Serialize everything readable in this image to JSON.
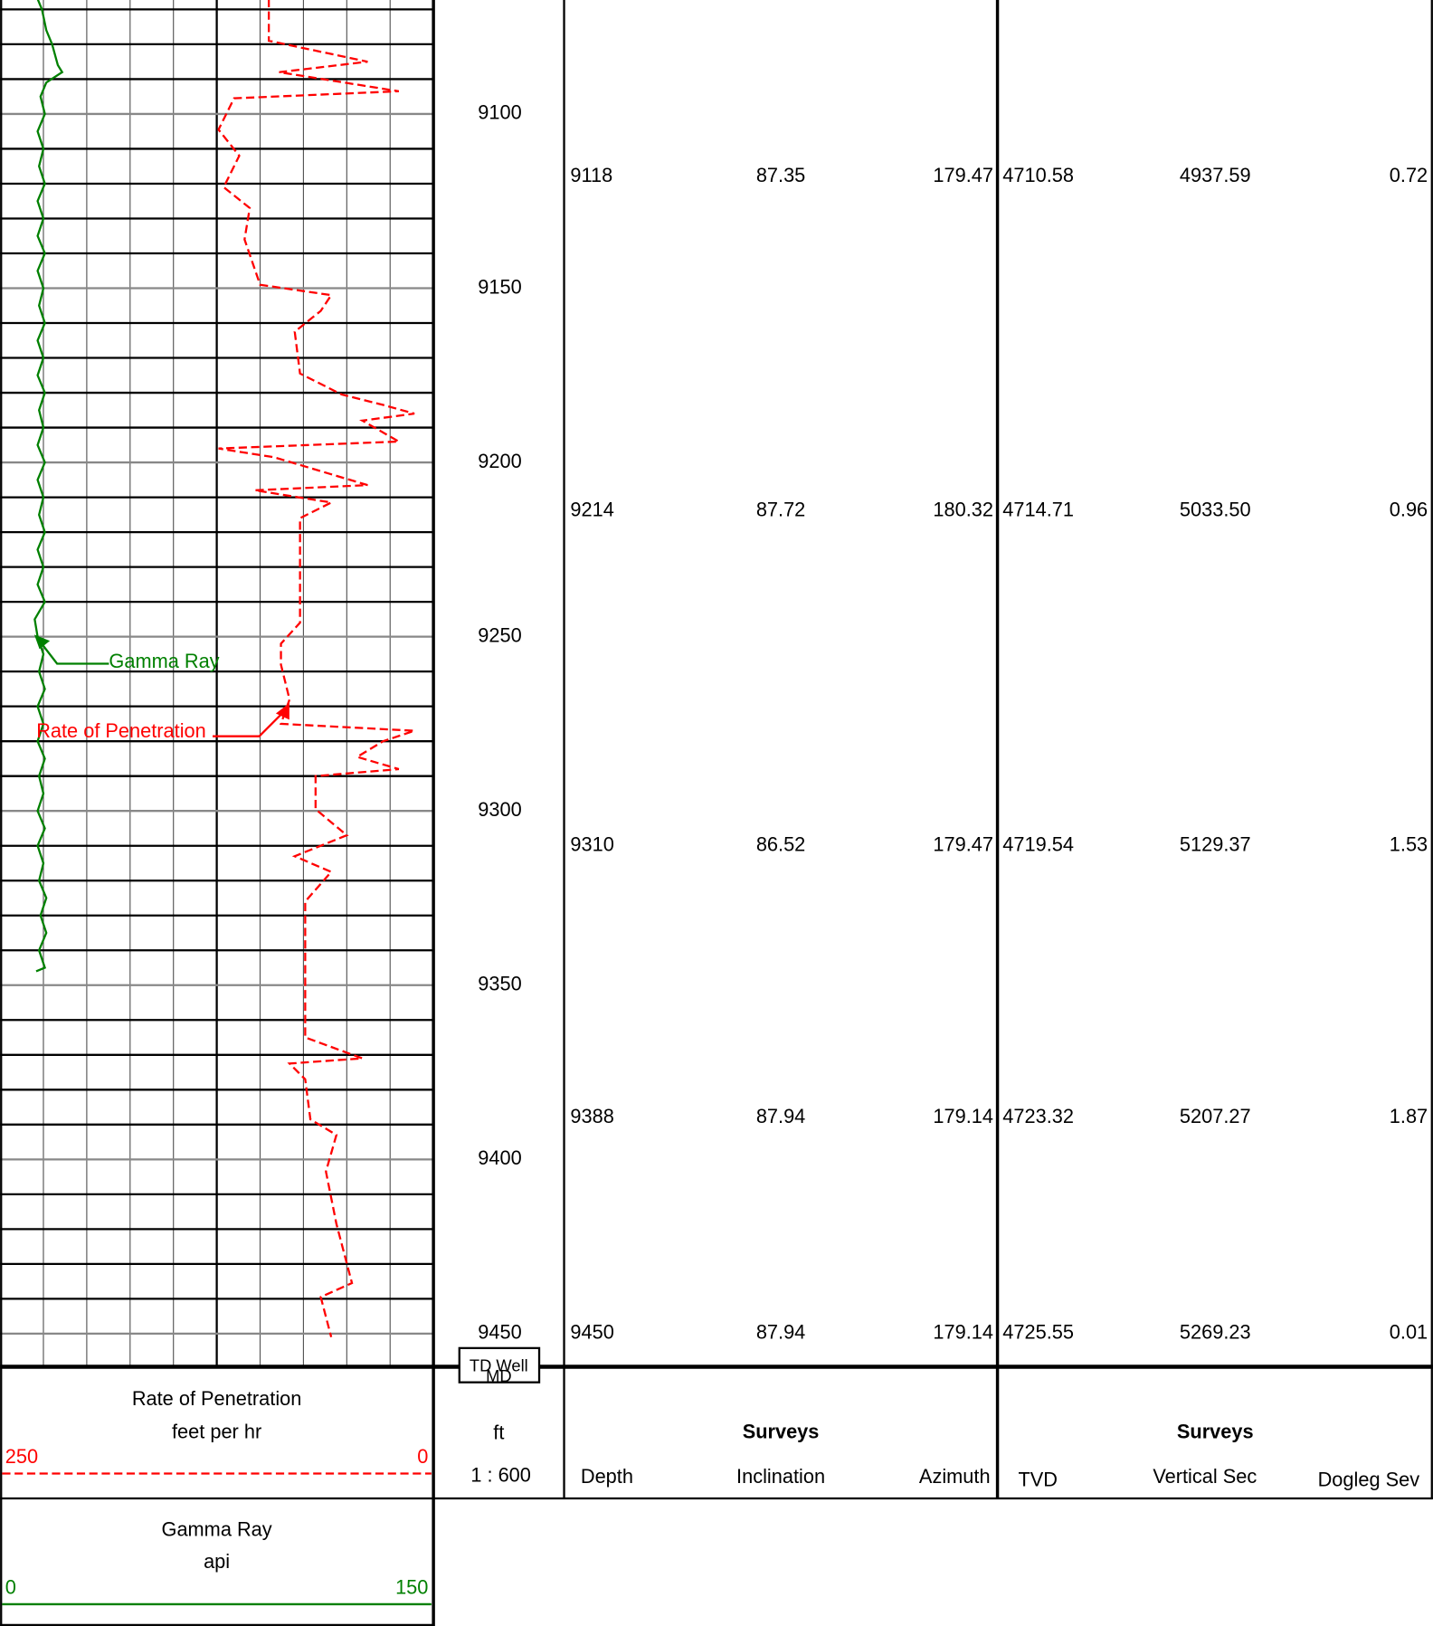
{
  "chart_data": {
    "type": "well-log",
    "ylim": [
      9067.3,
      9459.5
    ],
    "yticks": [
      9100,
      9150,
      9200,
      9250,
      9300,
      9350,
      9400,
      9450
    ],
    "minor_yticks": [
      9070,
      9080,
      9090,
      9110,
      9120,
      9130,
      9140,
      9160,
      9170,
      9180,
      9190,
      9210,
      9220,
      9230,
      9240,
      9260,
      9270,
      9280,
      9290,
      9310,
      9320,
      9330,
      9340,
      9360,
      9370,
      9380,
      9390,
      9410,
      9420,
      9430,
      9440
    ],
    "td_label": "TD Well",
    "depth_label": "MD",
    "depth_unit": "ft",
    "scale": "1 : 600",
    "series": [
      {
        "name": "Rate of Penetration",
        "unit": "feet per hr",
        "color": "#ff0000",
        "line_style": "dashed",
        "xlim": [
          250,
          0
        ],
        "depth": [
          9067,
          9079,
          9085,
          9088,
          9093.5,
          9095.5,
          9104.5,
          9112,
          9121,
          9127,
          9136,
          9149,
          9152,
          9156.5,
          9162.5,
          9174.5,
          9180.5,
          9183.5,
          9186,
          9188,
          9194,
          9196,
          9198.5,
          9206.5,
          9208,
          9211.5,
          9216,
          9228,
          9246,
          9252,
          9258,
          9268,
          9275,
          9277,
          9280,
          9284.5,
          9288,
          9290,
          9299.5,
          9307,
          9313,
          9317.5,
          9326,
          9350,
          9365,
          9371,
          9372.5,
          9377,
          9388.5,
          9393,
          9403.5,
          9418.5,
          9435.5,
          9439.5,
          9451
        ],
        "values": [
          95,
          95,
          38,
          89,
          20,
          115,
          124,
          112,
          121,
          106,
          109,
          100,
          59,
          65,
          80,
          77,
          53,
          29,
          11,
          41,
          20,
          124,
          92,
          38,
          103,
          59,
          77,
          77,
          77,
          88,
          88,
          83,
          88,
          11,
          29,
          44,
          20,
          68,
          68,
          50,
          80,
          59,
          74,
          74,
          74,
          41,
          83,
          74,
          71,
          56,
          62,
          56,
          47,
          65,
          59
        ]
      },
      {
        "name": "Gamma Ray",
        "unit": "api",
        "color": "#008000",
        "line_style": "solid",
        "xlim": [
          0,
          150
        ],
        "depth": [
          9067,
          9070,
          9076,
          9080,
          9086,
          9088,
          9091,
          9095,
          9100,
          9105,
          9110,
          9115,
          9120,
          9125,
          9130,
          9135,
          9140,
          9145,
          9150,
          9155,
          9160,
          9165,
          9170,
          9175,
          9180,
          9185,
          9190,
          9195,
          9200,
          9205,
          9210,
          9215,
          9220,
          9225,
          9230,
          9235,
          9240,
          9245,
          9250,
          9255,
          9260,
          9265,
          9270,
          9275,
          9280,
          9285,
          9290,
          9295,
          9300,
          9305,
          9310,
          9315,
          9320,
          9325,
          9330,
          9335,
          9340,
          9345,
          9346
        ],
        "values": [
          13,
          14.5,
          16,
          18,
          20,
          21.5,
          16,
          14,
          15.5,
          13,
          15,
          13.5,
          15.5,
          13,
          15,
          13,
          15.5,
          13,
          15,
          13.5,
          15.5,
          13,
          15,
          13,
          15.5,
          13.5,
          15,
          13,
          15.5,
          13,
          15,
          13.5,
          15.5,
          13,
          15,
          13,
          15.5,
          12,
          13,
          15,
          13.5,
          15.5,
          13,
          15,
          13,
          15.5,
          13.5,
          15,
          13,
          15.5,
          13,
          15,
          13.5,
          16,
          14,
          16,
          13.5,
          15.5,
          12.5
        ]
      }
    ],
    "surveys": {
      "title": "Surveys",
      "columns": [
        "Depth",
        "Inclination",
        "Azimuth",
        "TVD",
        "Vertical Sec",
        "Dogleg Sev"
      ],
      "rows": [
        [
          "9118",
          "87.35",
          "179.47",
          "4710.58",
          "4937.59",
          "0.72"
        ],
        [
          "9214",
          "87.72",
          "180.32",
          "4714.71",
          "5033.50",
          "0.96"
        ],
        [
          "9310",
          "86.52",
          "179.47",
          "4719.54",
          "5129.37",
          "1.53"
        ],
        [
          "9388",
          "87.94",
          "179.14",
          "4723.32",
          "5207.27",
          "1.87"
        ],
        [
          "9450",
          "87.94",
          "179.14",
          "4725.55",
          "5269.23",
          "0.01"
        ]
      ]
    }
  }
}
